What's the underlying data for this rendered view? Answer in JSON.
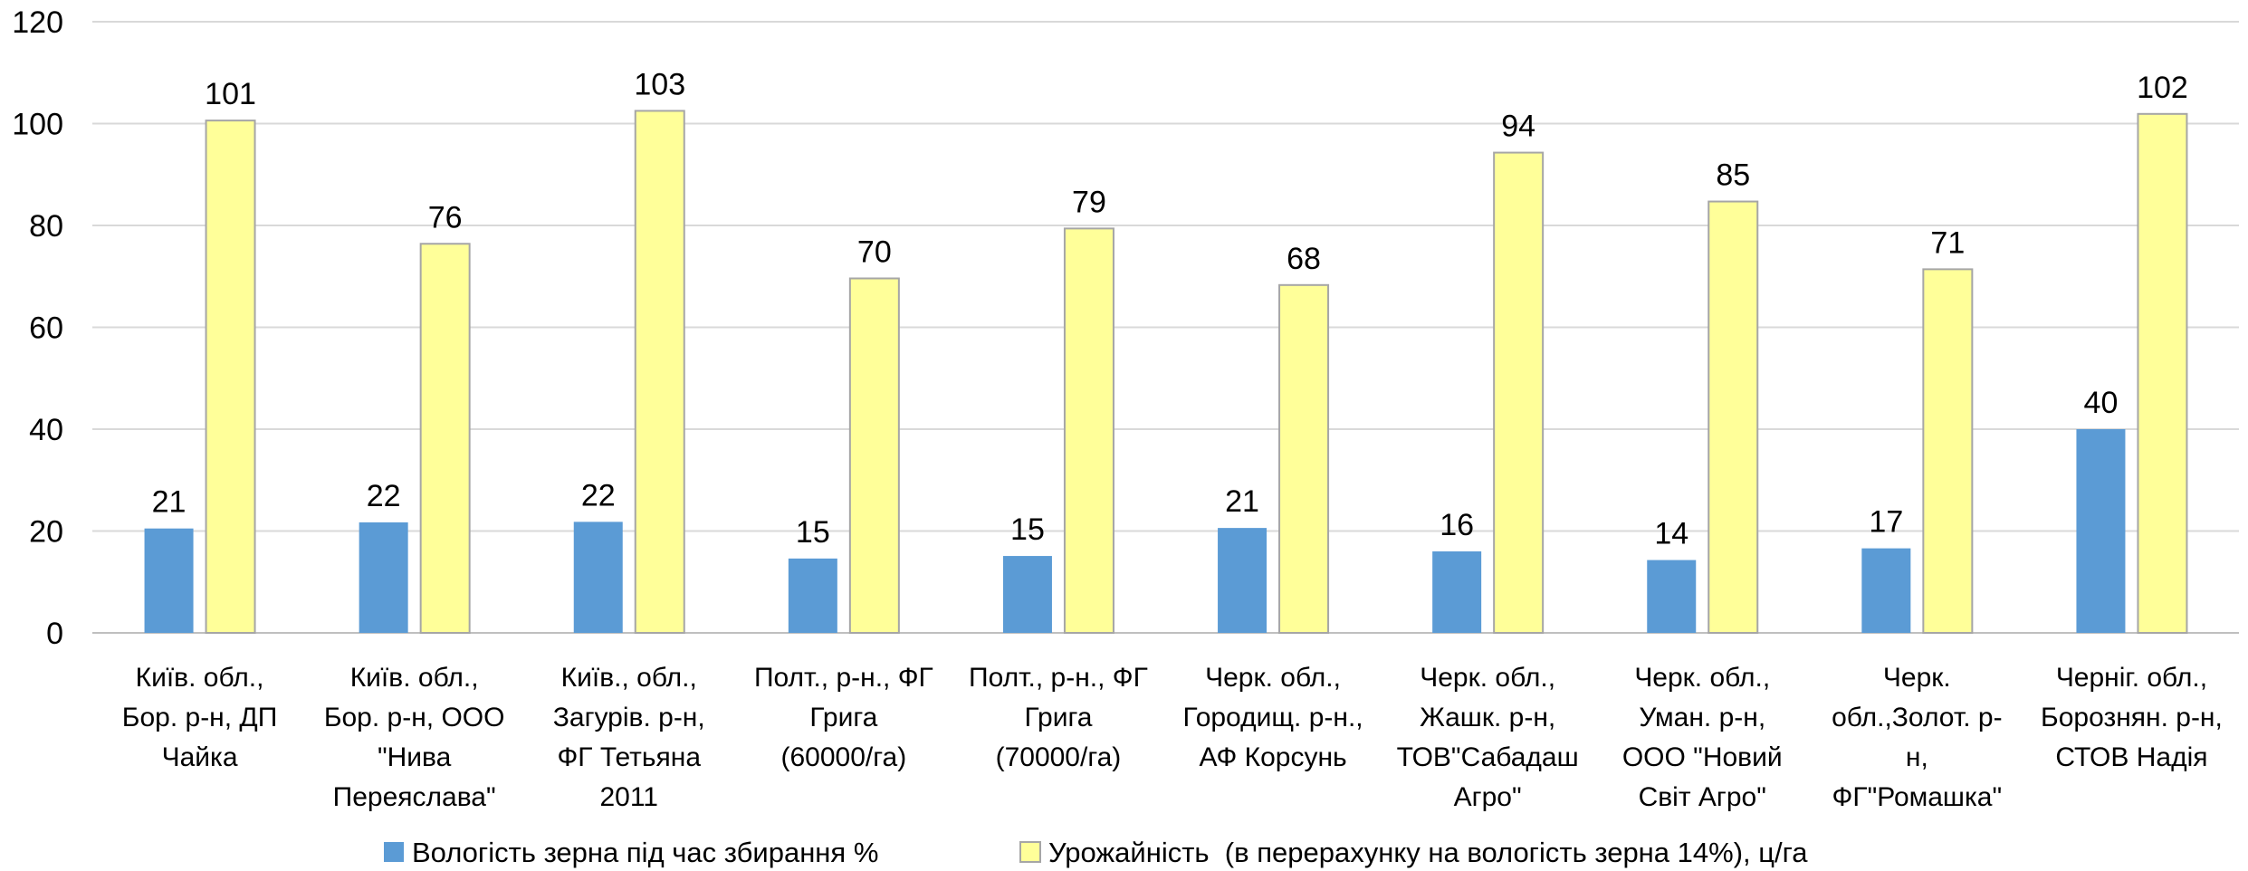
{
  "chart_data": {
    "type": "bar",
    "categories": [
      [
        "Київ. обл.,",
        "Бор. р-н, ДП",
        "Чайка"
      ],
      [
        "Київ. обл.,",
        "Бор. р-н, ООО",
        "\"Нива",
        "Переяслава\""
      ],
      [
        "Київ., обл.,",
        "Загурів. р-н,",
        "ФГ Тетьяна",
        "2011"
      ],
      [
        "Полт., р-н., ФГ",
        "Грига",
        "(60000/га)"
      ],
      [
        "Полт., р-н., ФГ",
        "Грига",
        "(70000/га)"
      ],
      [
        "Черк. обл.,",
        "Городищ. р-н.,",
        "АФ Корсунь"
      ],
      [
        "Черк. обл.,",
        "Жашк. р-н,",
        "ТОВ\"Сабадаш",
        "Агро\""
      ],
      [
        "Черк. обл.,",
        "Уман. р-н,",
        "ООО \"Новий",
        "Світ Агро\""
      ],
      [
        "Черк.",
        "обл.,Золот. р-",
        "н,",
        "ФГ\"Ромашка\""
      ],
      [
        "Черніг. обл.,",
        "Борознян. р-н,",
        "СТОВ Надія"
      ]
    ],
    "series": [
      {
        "name": "Вологість зерна під час збирання %",
        "color": "#5b9bd5",
        "values": [
          20.5,
          21.7,
          21.8,
          14.6,
          15.1,
          20.6,
          16.0,
          14.3,
          16.6,
          40.0
        ],
        "labels": [
          "21",
          "22",
          "22",
          "15",
          "15",
          "21",
          "16",
          "14",
          "17",
          "40"
        ]
      },
      {
        "name": "Урожайність  (в перерахунку на вологість зерна 14%), ц/га",
        "color": "#ffff99",
        "values": [
          100.6,
          76.4,
          102.5,
          69.6,
          79.4,
          68.3,
          94.3,
          84.7,
          71.4,
          101.9
        ],
        "labels": [
          "101",
          "76",
          "103",
          "70",
          "79",
          "68",
          "94",
          "85",
          "71",
          "102"
        ]
      }
    ],
    "yticks": [
      "0",
      "20",
      "40",
      "60",
      "80",
      "100",
      "120"
    ],
    "ylim": [
      0,
      120
    ],
    "grid": true,
    "legend_position": "bottom",
    "title": "",
    "xlabel": "",
    "ylabel": ""
  }
}
